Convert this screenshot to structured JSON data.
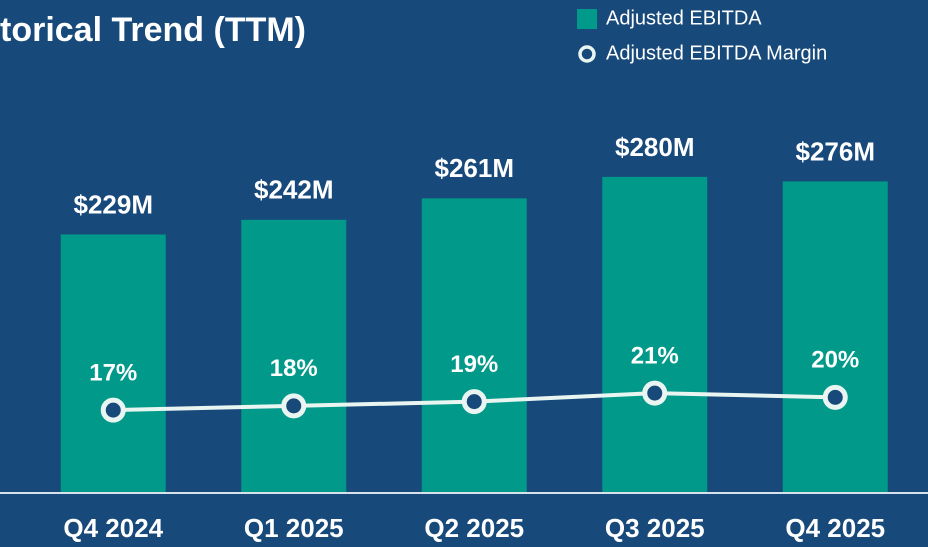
{
  "chart_data": {
    "type": "bar",
    "title": "torical Trend (TTM)",
    "categories": [
      "Q4 2024",
      "Q1 2025",
      "Q2 2025",
      "Q3 2025",
      "Q4 2025"
    ],
    "series": [
      {
        "name": "Adjusted EBITDA",
        "type": "bar",
        "color": "#00998a",
        "values": [
          229,
          242,
          261,
          280,
          276
        ],
        "value_labels": [
          "$229M",
          "$242M",
          "$261M",
          "$280M",
          "$276M"
        ]
      },
      {
        "name": "Adjusted EBITDA Margin",
        "type": "line",
        "axis": "y2",
        "color": "#e9f5f1",
        "values": [
          17,
          18,
          19,
          21,
          20
        ],
        "value_labels": [
          "17%",
          "18%",
          "19%",
          "21%",
          "20%"
        ]
      }
    ],
    "ylim": [
      0,
      400
    ],
    "y2lim": [
      -2.5,
      103.76
    ],
    "legend": "top-right"
  }
}
